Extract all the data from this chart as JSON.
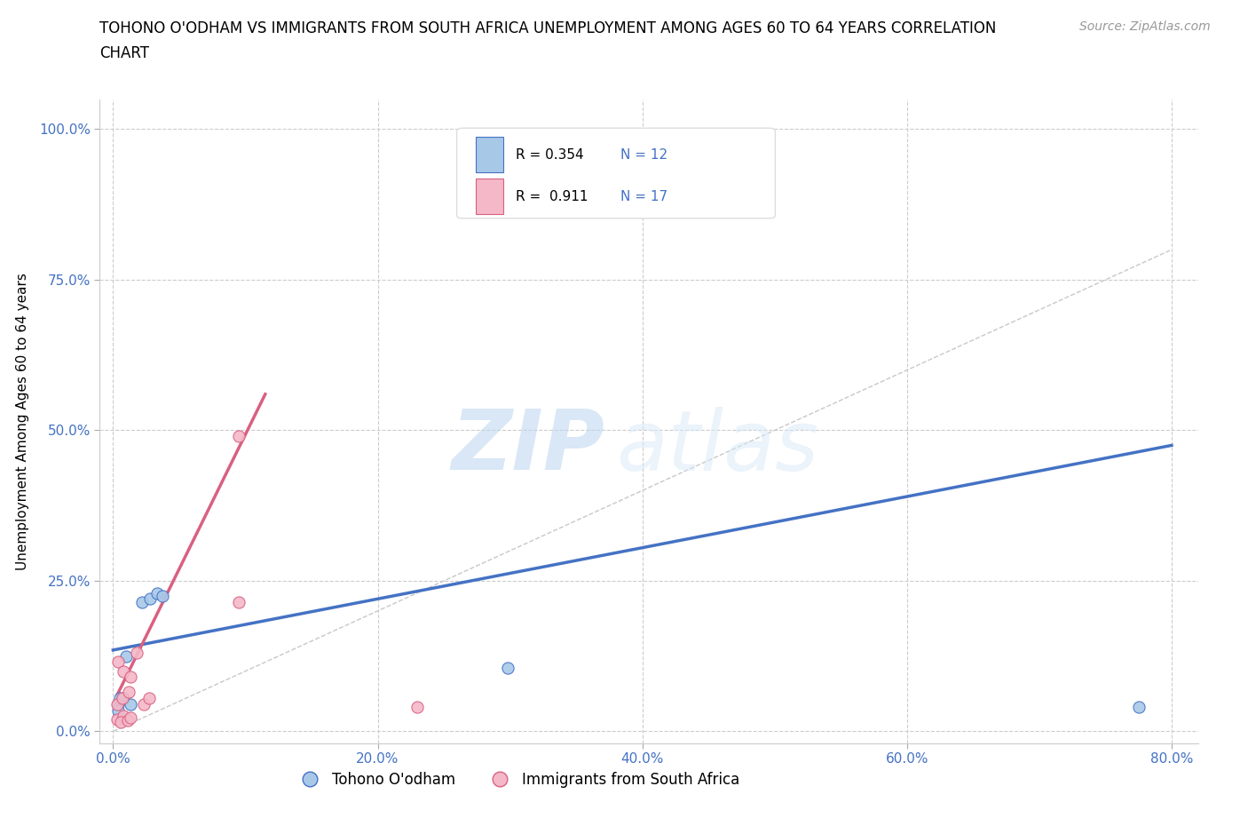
{
  "title_line1": "TOHONO O'ODHAM VS IMMIGRANTS FROM SOUTH AFRICA UNEMPLOYMENT AMONG AGES 60 TO 64 YEARS CORRELATION",
  "title_line2": "CHART",
  "source": "Source: ZipAtlas.com",
  "ylabel": "Unemployment Among Ages 60 to 64 years",
  "xlim": [
    -0.01,
    0.82
  ],
  "ylim": [
    -0.02,
    1.05
  ],
  "xticks": [
    0.0,
    0.2,
    0.4,
    0.6,
    0.8
  ],
  "xticklabels": [
    "0.0%",
    "20.0%",
    "40.0%",
    "60.0%",
    "80.0%"
  ],
  "yticks": [
    0.0,
    0.25,
    0.5,
    0.75,
    1.0
  ],
  "yticklabels": [
    "0.0%",
    "25.0%",
    "50.0%",
    "75.0%",
    "100.0%"
  ],
  "blue_scatter_x": [
    0.022,
    0.028,
    0.033,
    0.037,
    0.01,
    0.004,
    0.008,
    0.013,
    0.004,
    0.298,
    0.775,
    0.005
  ],
  "blue_scatter_y": [
    0.215,
    0.22,
    0.23,
    0.225,
    0.125,
    0.045,
    0.055,
    0.045,
    0.035,
    0.105,
    0.04,
    0.055
  ],
  "pink_scatter_x": [
    0.004,
    0.008,
    0.013,
    0.018,
    0.003,
    0.007,
    0.012,
    0.095,
    0.003,
    0.008,
    0.006,
    0.011,
    0.013,
    0.023,
    0.027,
    0.095,
    0.23
  ],
  "pink_scatter_y": [
    0.115,
    0.1,
    0.09,
    0.13,
    0.045,
    0.055,
    0.065,
    0.49,
    0.02,
    0.025,
    0.015,
    0.018,
    0.023,
    0.045,
    0.055,
    0.215,
    0.04
  ],
  "blue_line_x": [
    0.0,
    0.8
  ],
  "blue_line_y": [
    0.135,
    0.475
  ],
  "pink_line_x": [
    0.003,
    0.115
  ],
  "pink_line_y": [
    0.06,
    0.56
  ],
  "ref_line_x": [
    0.0,
    0.8
  ],
  "ref_line_y": [
    0.0,
    0.8
  ],
  "blue_color": "#a8c8e8",
  "blue_line_color": "#4472c4",
  "pink_color": "#f4b8c8",
  "pink_line_color": "#d96080",
  "ref_line_color": "#c8c8c8",
  "scatter_size": 90,
  "legend_R_blue": "R = 0.354",
  "legend_N_blue": "N = 12",
  "legend_R_pink": "R =  0.911",
  "legend_N_pink": "N = 17",
  "legend_label_blue": "Tohono O'odham",
  "legend_label_pink": "Immigrants from South Africa",
  "watermark_zip": "ZIP",
  "watermark_atlas": "atlas",
  "background_color": "#ffffff",
  "grid_color": "#cccccc"
}
